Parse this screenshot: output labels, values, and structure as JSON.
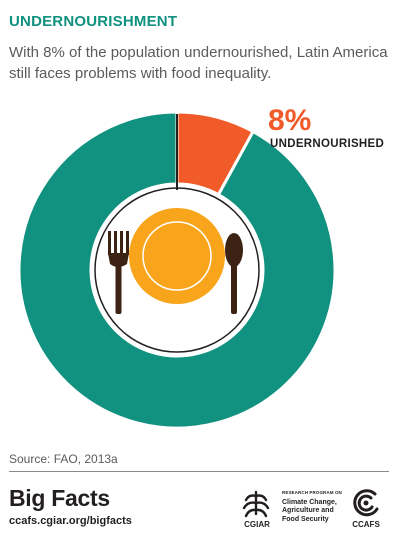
{
  "header": {
    "title": "UNDERNOURISHMENT",
    "subtitle": "With 8% of the population undernourished, Latin America still faces problems with food inequality."
  },
  "colors": {
    "teal": "#11917f",
    "orange": "#f15a29",
    "plate": "#f9a51b",
    "cutlery": "#3d2314",
    "dark": "#231f20"
  },
  "chart_data": {
    "type": "pie",
    "slices": [
      {
        "label": "UNDERNOURISHED",
        "value": 8,
        "value_label": "8%",
        "color": "#f15a29"
      },
      {
        "label": "",
        "value": 92,
        "color": "#11917f"
      }
    ],
    "style": "donut"
  },
  "footer": {
    "source": "Source: FAO, 2013a",
    "brand": "Big Facts",
    "url": "ccafs.cgiar.org/bigfacts",
    "cgiar": "CGIAR",
    "program_pre": "RESEARCH PROGRAM ON",
    "program_lines": [
      "Climate Change,",
      "Agriculture and",
      "Food Security"
    ],
    "ccafs": "CCAFS"
  },
  "icons": [
    "fork-icon",
    "plate-icon",
    "spoon-icon",
    "cgiar-logo-icon",
    "ccafs-logo-icon"
  ]
}
